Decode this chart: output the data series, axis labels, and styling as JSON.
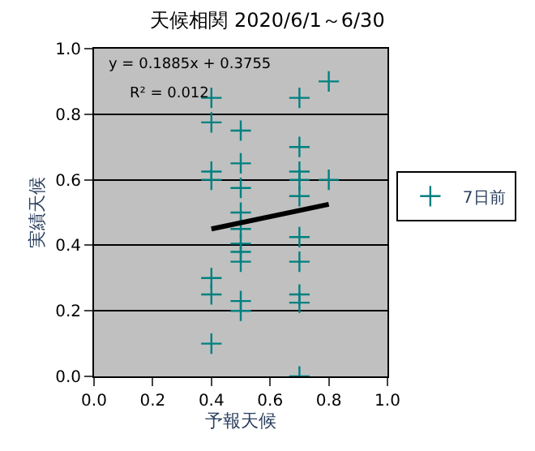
{
  "chart_data": {
    "type": "scatter",
    "title": "天候相関 2020/6/1～6/30",
    "xlabel": "予報天候",
    "ylabel": "実績天候",
    "series": [
      {
        "name": "7日前",
        "color": "#008080",
        "marker": "cross",
        "x": [
          0.4,
          0.4,
          0.4,
          0.4,
          0.4,
          0.4,
          0.4,
          0.5,
          0.5,
          0.5,
          0.5,
          0.5,
          0.5,
          0.5,
          0.5,
          0.5,
          0.5,
          0.7,
          0.7,
          0.7,
          0.7,
          0.7,
          0.7,
          0.7,
          0.7,
          0.7,
          0.7,
          0.8,
          0.8
        ],
        "values": [
          0.85,
          0.775,
          0.625,
          0.6,
          0.3,
          0.25,
          0.1,
          0.75,
          0.65,
          0.575,
          0.5,
          0.45,
          0.405,
          0.38,
          0.35,
          0.23,
          0.2,
          0.85,
          0.7,
          0.625,
          0.6,
          0.55,
          0.425,
          0.35,
          0.25,
          0.225,
          0.0,
          0.9,
          0.6
        ]
      },
      {
        "type": "line",
        "color": "#000000",
        "x": [
          0.4,
          0.8
        ],
        "values": [
          0.45,
          0.525
        ]
      }
    ],
    "annotations": [
      "y = 0.1885x + 0.3755",
      "R² = 0.012"
    ],
    "xlim": [
      0,
      1
    ],
    "xticks": [
      {
        "value": 0,
        "label": "0.0"
      },
      {
        "value": 0.2,
        "label": "0.2"
      },
      {
        "value": 0.4,
        "label": "0.4"
      },
      {
        "value": 0.6,
        "label": "0.6"
      },
      {
        "value": 0.8,
        "label": "0.8"
      },
      {
        "value": 1,
        "label": "1.0"
      }
    ],
    "ylim": [
      0,
      1
    ],
    "yticks": [
      {
        "value": 0,
        "label": "0.0"
      },
      {
        "value": 0.2,
        "label": "0.2"
      },
      {
        "value": 0.4,
        "label": "0.4"
      },
      {
        "value": 0.6,
        "label": "0.6"
      },
      {
        "value": 0.8,
        "label": "0.8"
      },
      {
        "value": 1,
        "label": "1.0"
      }
    ],
    "grid": "y",
    "legend": "right"
  }
}
